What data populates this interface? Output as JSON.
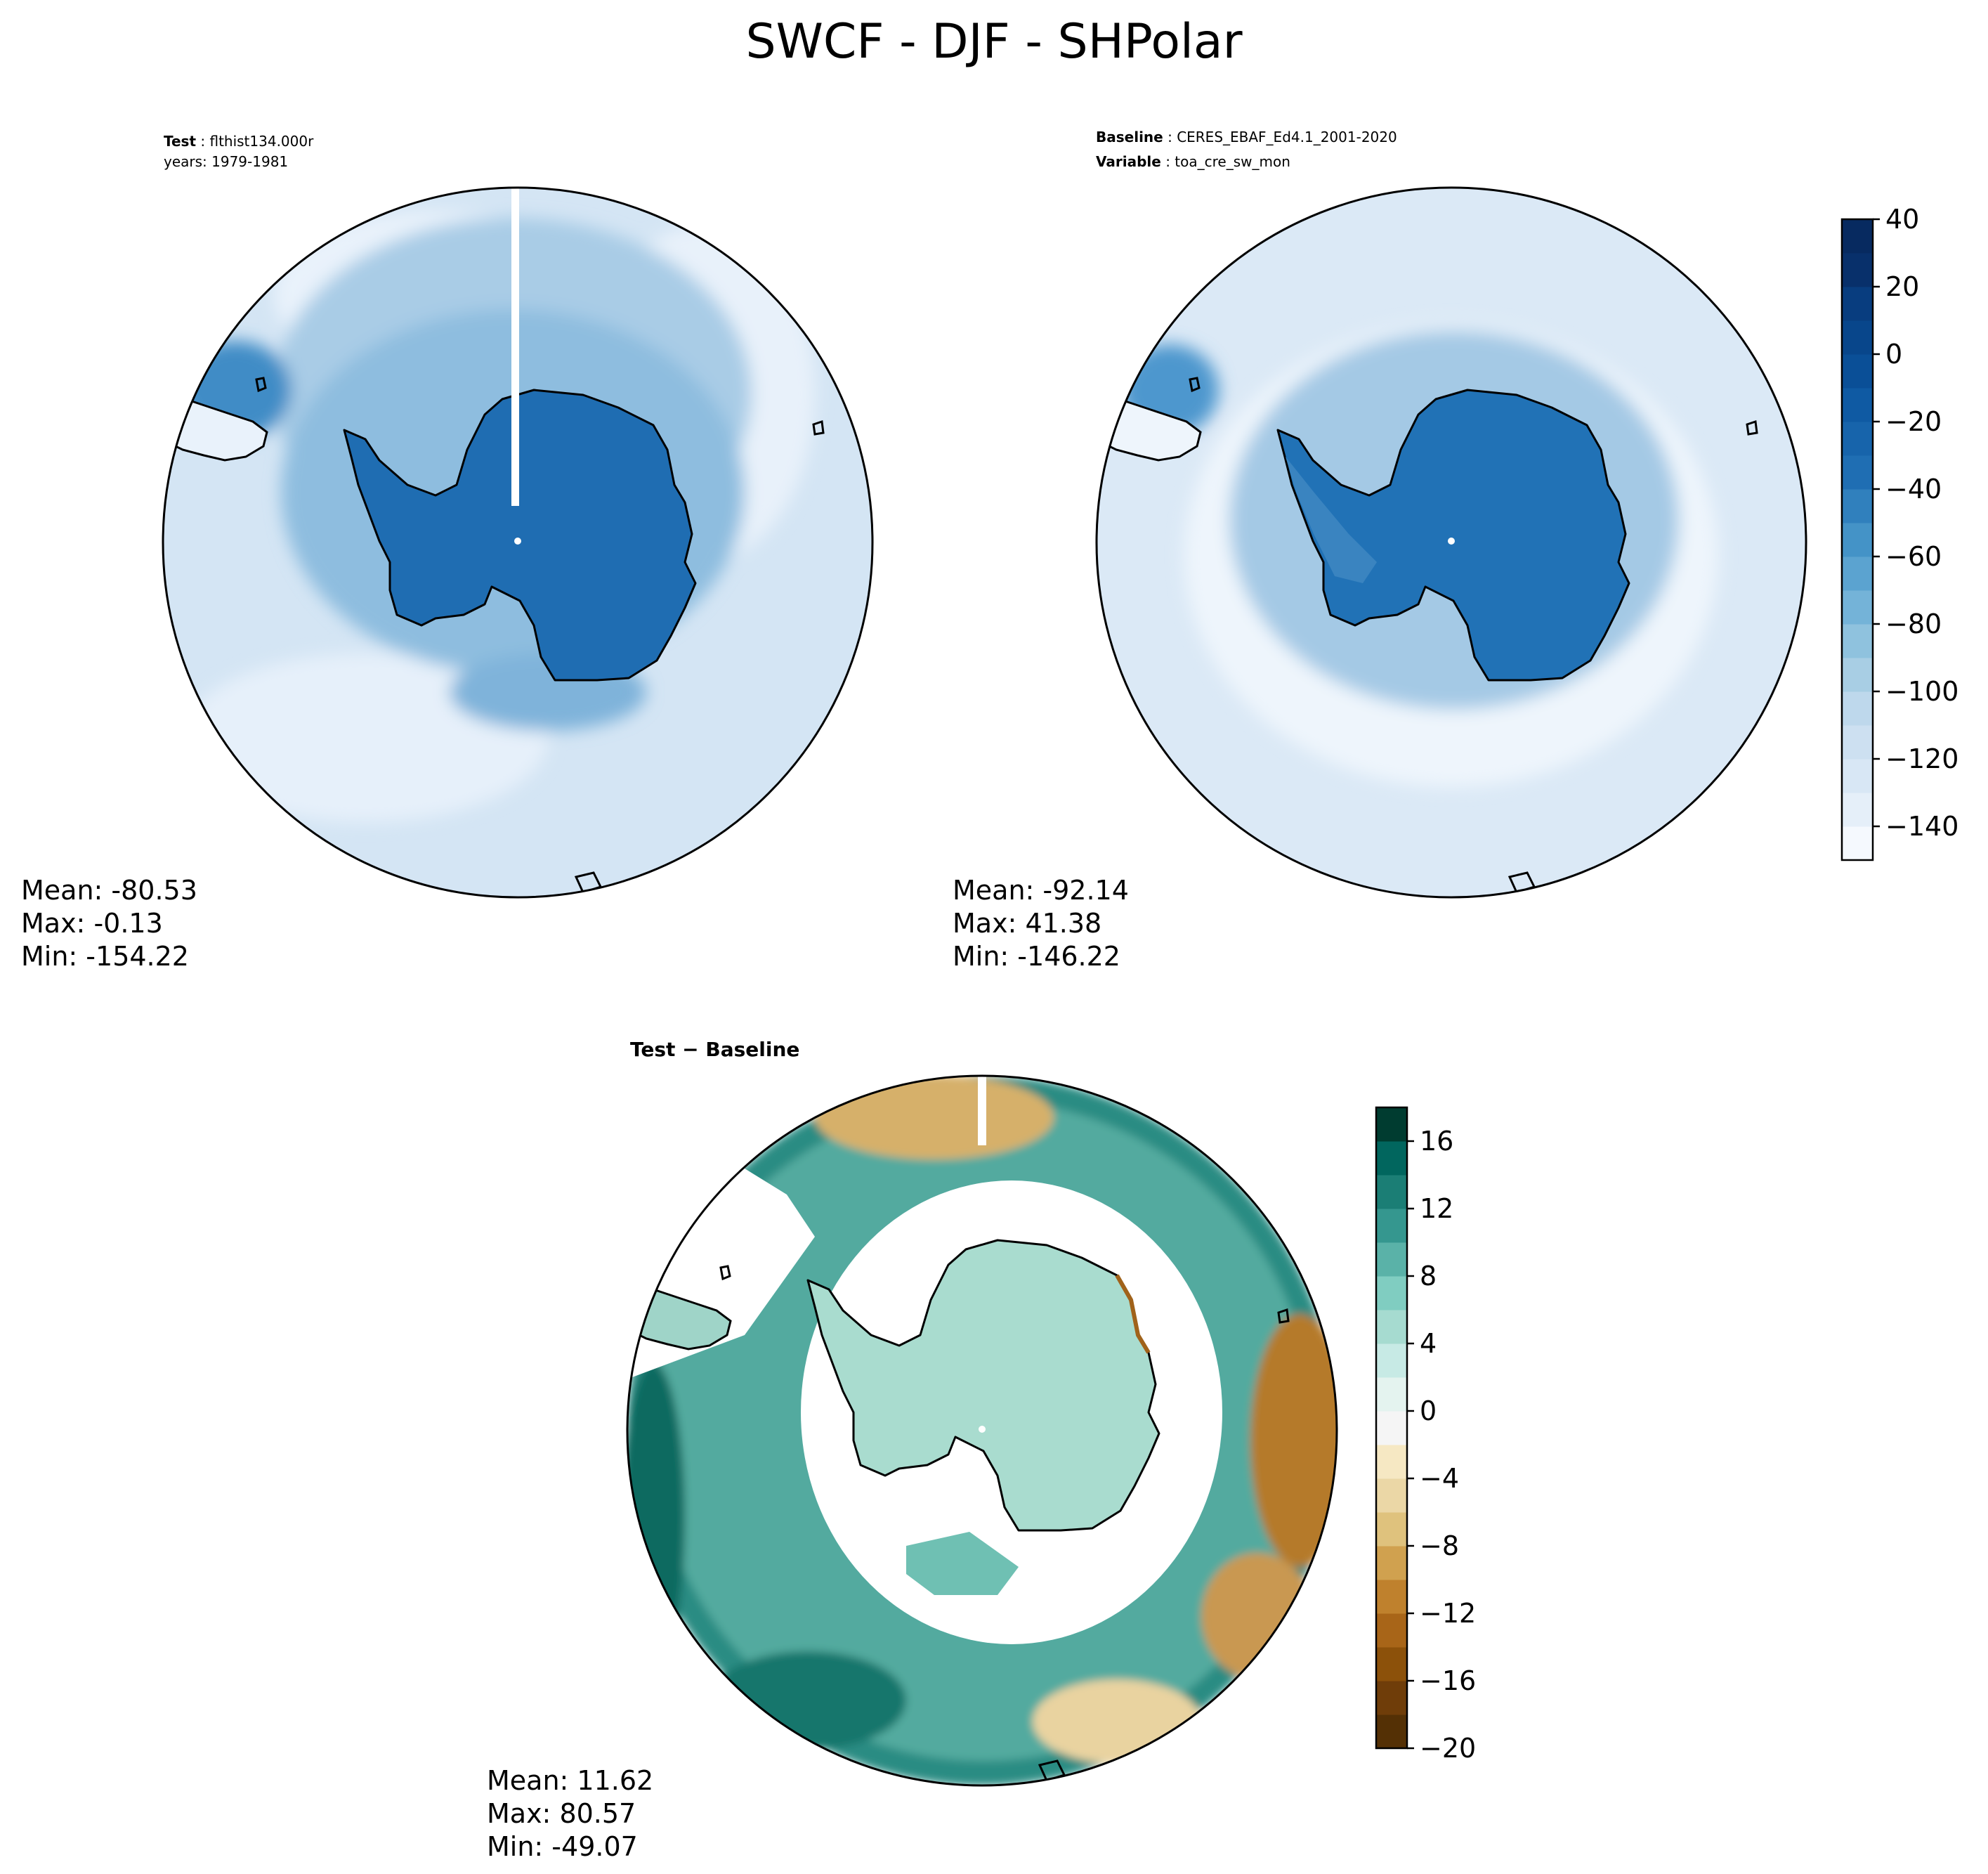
{
  "title": "SWCF - DJF - SHPolar",
  "test_panel": {
    "line1_label": "Test",
    "line1_value": "flthist134.000r",
    "line2": "years: 1979-1981",
    "stats": {
      "mean": "Mean: -80.53",
      "max": "Max: -0.13",
      "min": "Min: -154.22"
    }
  },
  "baseline_panel": {
    "line1_label": "Baseline",
    "line1_value": "CERES_EBAF_Ed4.1_2001-2020",
    "line2_label": "Variable",
    "line2_value": "toa_cre_sw_mon",
    "stats": {
      "mean": "Mean: -92.14",
      "max": "Max: 41.38",
      "min": "Min: -146.22"
    }
  },
  "diff_panel": {
    "title": "Test − Baseline",
    "stats": {
      "mean": "Mean: 11.62",
      "max": "Max: 80.57",
      "min": "Min: -49.07"
    }
  },
  "chart_data": [
    {
      "type": "heatmap",
      "name": "test",
      "projection": "south-polar-stereographic",
      "colorbar": {
        "min": -150,
        "max": 40,
        "step": 10,
        "ticks": [
          "40",
          "20",
          "0",
          "−20",
          "−40",
          "−60",
          "−80",
          "−100",
          "−120",
          "−140"
        ],
        "tick_values": [
          40,
          20,
          0,
          -20,
          -40,
          -60,
          -80,
          -100,
          -120,
          -140
        ],
        "colors": [
          "#f5f9fe",
          "#e5eff9",
          "#d8e7f5",
          "#cde0f1",
          "#bed8ec",
          "#a8cee4",
          "#8fc2de",
          "#74b3d8",
          "#5ba3d0",
          "#4493c7",
          "#3080bd",
          "#1f6eb3",
          "#1764ab",
          "#0f5aa3",
          "#0a4f97",
          "#08468b",
          "#083d7f",
          "#08306b",
          "#072a60"
        ]
      },
      "stats": {
        "mean": -80.53,
        "max": -0.13,
        "min": -154.22
      }
    },
    {
      "type": "heatmap",
      "name": "baseline",
      "projection": "south-polar-stereographic",
      "stats": {
        "mean": -92.14,
        "max": 41.38,
        "min": -146.22
      }
    },
    {
      "type": "heatmap",
      "name": "difference",
      "projection": "south-polar-stereographic",
      "colorbar": {
        "min": -20,
        "max": 18,
        "step": 2,
        "ticks": [
          "16",
          "12",
          "8",
          "4",
          "0",
          "−4",
          "−8",
          "−12",
          "−16",
          "−20"
        ],
        "tick_values": [
          16,
          12,
          8,
          4,
          0,
          -4,
          -8,
          -12,
          -16,
          -20
        ],
        "colors": [
          "#543005",
          "#6f3d09",
          "#8c510a",
          "#a86518",
          "#bf812d",
          "#d0a14f",
          "#dfc27d",
          "#ebd7a6",
          "#f6e8c3",
          "#f5f5f5",
          "#e4f3ef",
          "#c7eae5",
          "#a6dbd0",
          "#80cdc1",
          "#5ab2a8",
          "#35978f",
          "#1b7e75",
          "#01665e",
          "#003c30"
        ]
      },
      "stats": {
        "mean": 11.62,
        "max": 80.57,
        "min": -49.07
      }
    }
  ]
}
